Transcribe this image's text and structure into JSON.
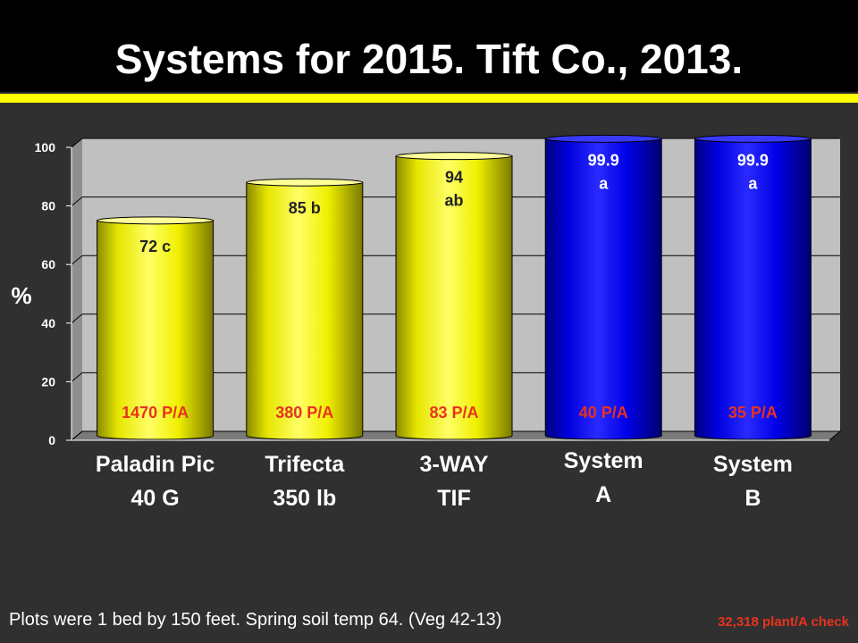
{
  "slide": {
    "title": "Systems for 2015. Tift Co., 2013.",
    "footnote": "Plots were 1 bed by 150 feet. Spring soil temp 64. (Veg 42-13)",
    "check_note": "32,318 plant/A check"
  },
  "chart_data": {
    "type": "bar",
    "title": "",
    "ylabel": "%",
    "xlabel": "",
    "ylim": [
      0,
      100
    ],
    "yticks": [
      0,
      20,
      40,
      60,
      80,
      100
    ],
    "grid": true,
    "categories": [
      [
        "Paladin Pic",
        "40 G"
      ],
      [
        "Trifecta",
        "350 lb"
      ],
      [
        "3-WAY",
        "TIF"
      ],
      [
        "System",
        "A"
      ],
      [
        "System",
        "B"
      ]
    ],
    "values": [
      72,
      85,
      94,
      99.9,
      99.9
    ],
    "value_labels": [
      [
        "72 c"
      ],
      [
        "85 b"
      ],
      [
        "94",
        "ab"
      ],
      [
        "99.9",
        "a"
      ],
      [
        "99.9",
        "a"
      ]
    ],
    "rate_labels": [
      "1470 P/A",
      "380 P/A",
      "83 P/A",
      "40 P/A",
      "35 P/A"
    ],
    "bar_colors": [
      "#ffff00",
      "#ffff00",
      "#ffff00",
      "#1010ff",
      "#1010ff"
    ],
    "colors": {
      "plot_background": "#c0c0c0",
      "rate_label": "#e8321e",
      "value_label_on_yellow": "#222222",
      "value_label_on_blue": "#ffffff"
    }
  }
}
